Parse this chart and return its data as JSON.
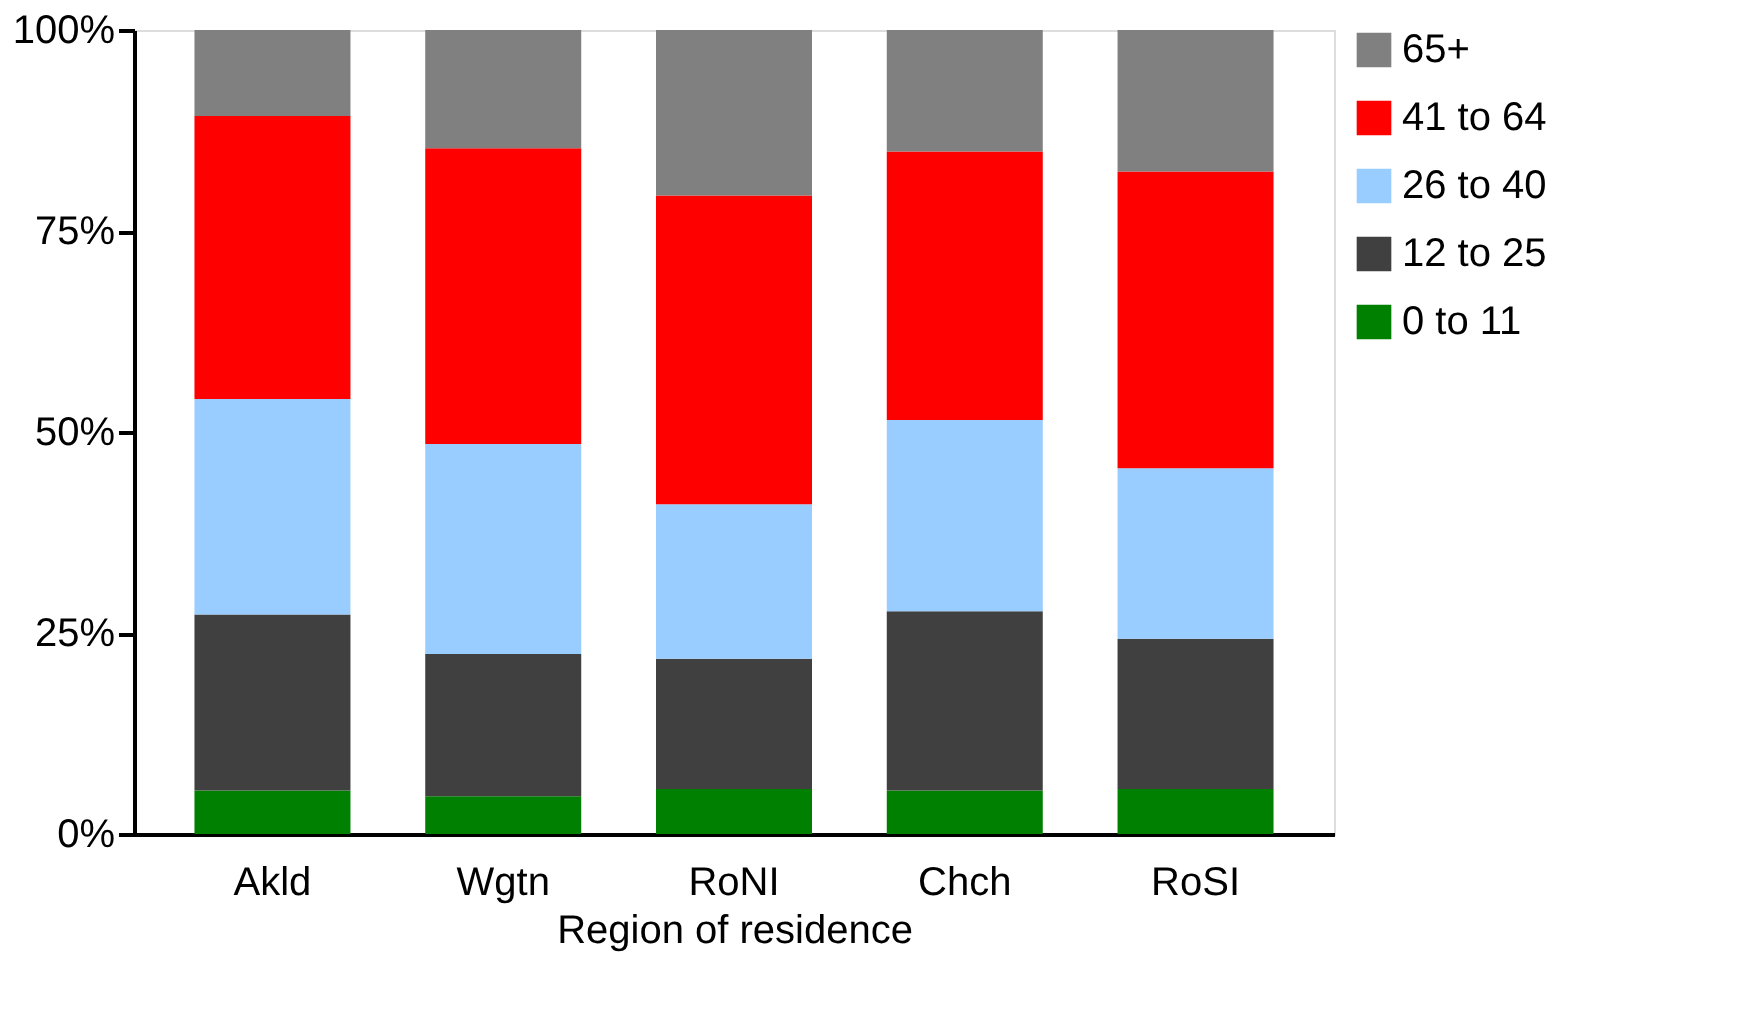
{
  "chart_data": {
    "type": "bar",
    "stacked": true,
    "xlabel": "Region of residence",
    "categories": [
      "Akld",
      "Wgtn",
      "RoNI",
      "Chch",
      "RoSI"
    ],
    "series": [
      {
        "name": "0 to 11",
        "color": "#008000",
        "values": [
          5.4,
          4.7,
          5.6,
          5.4,
          5.6
        ]
      },
      {
        "name": "12 to 25",
        "color": "#404040",
        "values": [
          21.9,
          17.7,
          16.2,
          22.3,
          18.7
        ]
      },
      {
        "name": "26 to 40",
        "color": "#99ccff",
        "values": [
          26.8,
          26.1,
          19.2,
          23.8,
          21.2
        ]
      },
      {
        "name": "41 to 64",
        "color": "#ff0000",
        "values": [
          35.2,
          36.8,
          38.4,
          33.4,
          36.9
        ]
      },
      {
        "name": "65+",
        "color": "#808080",
        "values": [
          10.7,
          14.7,
          20.6,
          15.1,
          17.6
        ]
      }
    ],
    "ylim": [
      0,
      100
    ],
    "yticks": [
      {
        "value": 0,
        "label": "0%"
      },
      {
        "value": 25,
        "label": "25%"
      },
      {
        "value": 50,
        "label": "50%"
      },
      {
        "value": 75,
        "label": "75%"
      },
      {
        "value": 100,
        "label": "100%"
      }
    ],
    "grid": false,
    "legend": "right"
  }
}
